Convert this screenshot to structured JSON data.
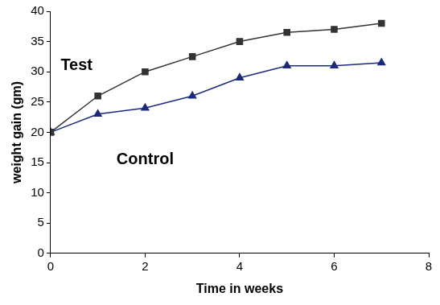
{
  "chart_data": {
    "type": "line",
    "x_label": "Time in weeks",
    "y_label": "weight gain (gm)",
    "x": [
      0,
      1,
      2,
      3,
      4,
      5,
      6,
      7
    ],
    "series": [
      {
        "name": "Test",
        "color": "#333333",
        "marker": "square",
        "line_style": "solid",
        "values": [
          20,
          26,
          30,
          32.5,
          35,
          36.5,
          37,
          38
        ]
      },
      {
        "name": "Control",
        "color": "#1a2a80",
        "marker": "triangle",
        "line_style": "solid",
        "values": [
          20,
          23,
          24,
          26,
          29,
          31,
          31,
          31.5
        ]
      }
    ],
    "xlim": [
      0,
      8
    ],
    "xticks": [
      0,
      2,
      4,
      6,
      8
    ],
    "ylim": [
      0,
      40
    ],
    "yticks": [
      0,
      5,
      10,
      15,
      20,
      25,
      30,
      35,
      40
    ],
    "grid": false
  }
}
